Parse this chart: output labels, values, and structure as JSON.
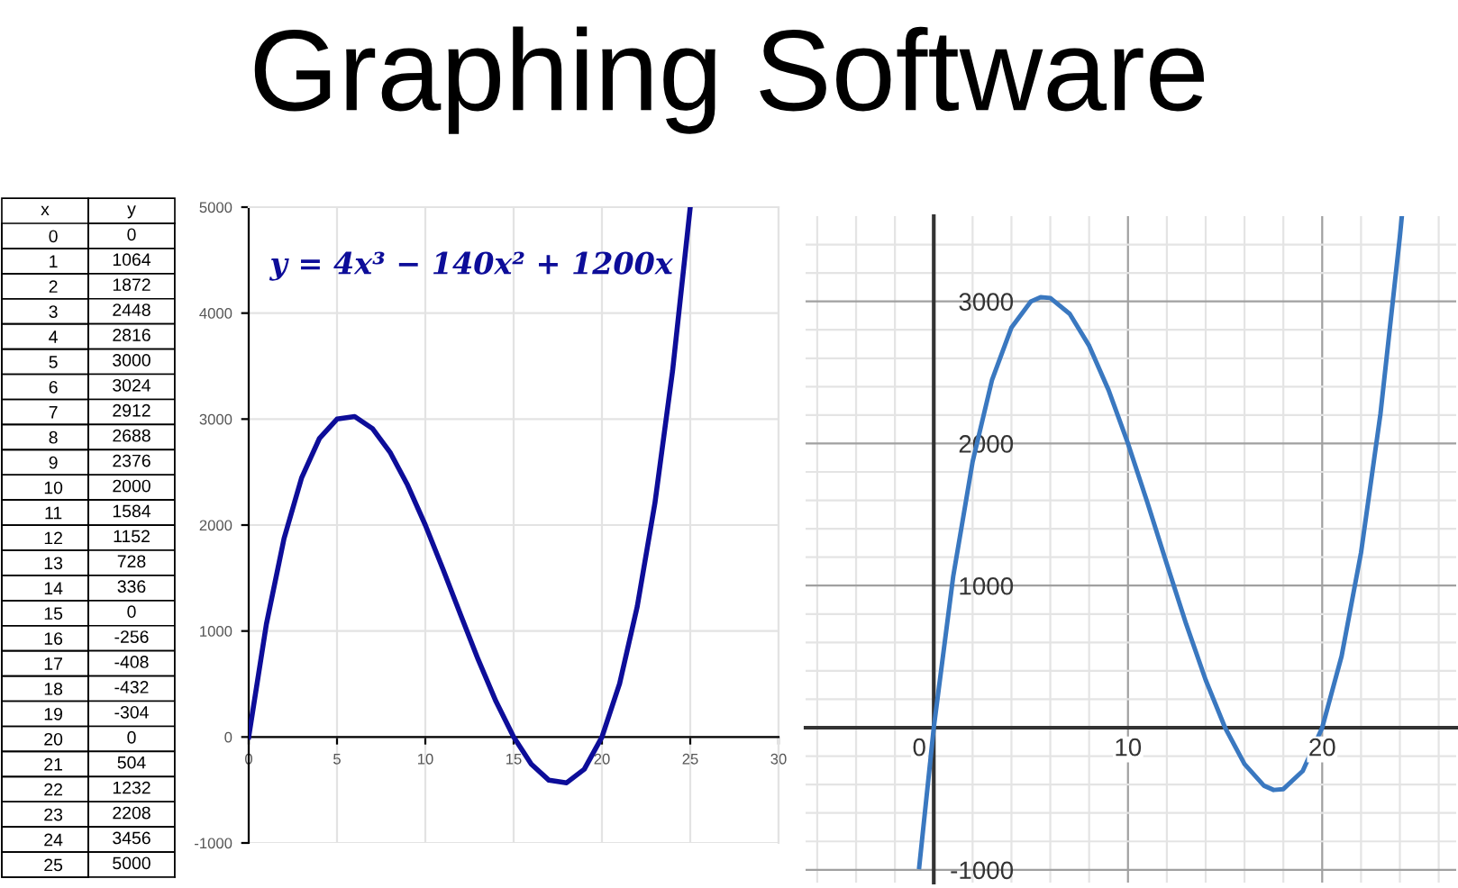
{
  "chart_data": [
    {
      "type": "heatmap",
      "ylabel": "x",
      "categories": [
        "y"
      ],
      "y_categories": [
        "0",
        "1",
        "2",
        "3",
        "4",
        "5",
        "6",
        "7",
        "8",
        "9",
        "10",
        "11",
        "12",
        "13",
        "14",
        "15",
        "16",
        "17",
        "18",
        "19",
        "20",
        "21",
        "22",
        "23",
        "24",
        "25"
      ],
      "cells": [
        [
          null
        ],
        [
          null
        ],
        [
          null
        ],
        [
          null
        ],
        [
          null
        ],
        [
          null
        ],
        [
          null
        ],
        [
          null
        ],
        [
          null
        ],
        [
          null
        ],
        [
          null
        ],
        [
          null
        ],
        [
          null
        ],
        [
          null
        ],
        [
          null
        ],
        [
          null
        ],
        [
          null
        ],
        [
          null
        ],
        [
          null
        ],
        [
          null
        ],
        [
          null
        ],
        [
          null
        ],
        [
          null
        ],
        [
          null
        ],
        [
          null
        ],
        [
          null
        ]
      ],
      "cell_labels": [
        [
          "0"
        ],
        [
          "1064"
        ],
        [
          "1872"
        ],
        [
          "2448"
        ],
        [
          "2816"
        ],
        [
          "3000"
        ],
        [
          "3024"
        ],
        [
          "2912"
        ],
        [
          "2688"
        ],
        [
          "2376"
        ],
        [
          "2000"
        ],
        [
          "1584"
        ],
        [
          "1152"
        ],
        [
          "728"
        ],
        [
          "336"
        ],
        [
          "0"
        ],
        [
          "-256"
        ],
        [
          "-408"
        ],
        [
          "-432"
        ],
        [
          "-304"
        ],
        [
          "0"
        ],
        [
          "504"
        ],
        [
          "1232"
        ],
        [
          "2208"
        ],
        [
          "3456"
        ],
        [
          "5000"
        ]
      ]
    },
    {
      "type": "line",
      "title": "Graphing Software",
      "x": [
        0,
        1,
        2,
        3,
        4,
        5,
        6,
        7,
        8,
        9,
        10,
        11,
        12,
        13,
        14,
        15,
        16,
        17,
        18,
        19,
        20,
        21,
        22,
        23,
        24,
        25
      ],
      "series": [
        {
          "color": "#0d0d99",
          "values": [
            0,
            1064,
            1872,
            2448,
            2816,
            3000,
            3024,
            2912,
            2688,
            2376,
            2000,
            1584,
            1152,
            728,
            336,
            0,
            -256,
            -408,
            -432,
            -304,
            0,
            504,
            1232,
            2208,
            3456,
            5000
          ]
        }
      ],
      "annotations": [
        "y = 4x³ − 140x² + 1200x"
      ],
      "xlim": [
        0,
        30
      ],
      "ylim": [
        -1000,
        5000
      ],
      "xticks": [
        0,
        5,
        10,
        15,
        20,
        25,
        30
      ],
      "yticks": [
        -1000,
        0,
        1000,
        2000,
        3000,
        4000,
        5000
      ],
      "grid": true
    },
    {
      "type": "line",
      "x": [
        -0.75,
        0,
        1,
        2,
        3,
        4,
        5,
        5.5,
        6,
        7,
        8,
        9,
        10,
        11,
        12,
        13,
        14,
        15,
        16,
        17,
        17.5,
        18,
        19,
        20,
        21,
        22,
        23,
        24,
        24.1
      ],
      "series": [
        {
          "color": "#3a78c0",
          "values": [
            -980,
            0,
            1064,
            1872,
            2448,
            2816,
            3000,
            3030,
            3024,
            2912,
            2688,
            2376,
            2000,
            1584,
            1152,
            728,
            336,
            0,
            -256,
            -408,
            -438,
            -432,
            -304,
            0,
            504,
            1232,
            2208,
            3456,
            3597
          ]
        }
      ],
      "xlim": [
        -6.6,
        26.9
      ],
      "ylim": [
        -1090,
        3600
      ],
      "xticks": [
        {
          "value": -6,
          "label": null
        },
        {
          "value": -4,
          "label": null
        },
        {
          "value": -2,
          "label": null
        },
        0,
        {
          "value": 2,
          "label": null
        },
        {
          "value": 4,
          "label": null
        },
        {
          "value": 6,
          "label": null
        },
        {
          "value": 8,
          "label": null
        },
        10,
        {
          "value": 12,
          "label": null
        },
        {
          "value": 14,
          "label": null
        },
        {
          "value": 16,
          "label": null
        },
        {
          "value": 18,
          "label": null
        },
        20,
        {
          "value": 22,
          "label": null
        },
        {
          "value": 24,
          "label": null
        },
        {
          "value": 26,
          "label": null
        }
      ],
      "yticks": [
        -1000,
        {
          "value": -800,
          "label": null
        },
        {
          "value": -600,
          "label": null
        },
        {
          "value": -400,
          "label": null
        },
        {
          "value": -200,
          "label": null
        },
        {
          "value": 200,
          "label": null
        },
        {
          "value": 400,
          "label": null
        },
        {
          "value": 600,
          "label": null
        },
        {
          "value": 800,
          "label": null
        },
        1000,
        {
          "value": 1200,
          "label": null
        },
        {
          "value": 1400,
          "label": null
        },
        {
          "value": 1600,
          "label": null
        },
        {
          "value": 1800,
          "label": null
        },
        2000,
        {
          "value": 2200,
          "label": null
        },
        {
          "value": 2400,
          "label": null
        },
        {
          "value": 2600,
          "label": null
        },
        {
          "value": 2800,
          "label": null
        },
        3000,
        {
          "value": 3200,
          "label": null
        },
        {
          "value": 3400,
          "label": null
        }
      ],
      "grid": true
    }
  ]
}
